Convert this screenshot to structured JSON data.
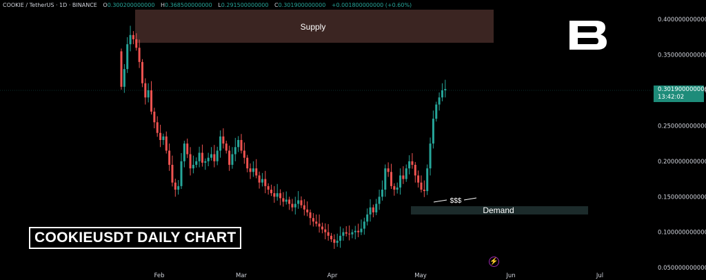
{
  "header": {
    "symbol": "COOKIE / TetherUS · 1D · BINANCE",
    "open_label": "O",
    "open": "0.300200000000",
    "high_label": "H",
    "high": "0.368500000000",
    "low_label": "L",
    "low": "0.291500000000",
    "close_label": "C",
    "close": "0.301900000000",
    "change": "+0.001800000000 (+0.60%)"
  },
  "price_tag": {
    "price": "0.301900000000",
    "countdown": "13:42:02"
  },
  "overlay_title": "COOKIEUSDT DAILY CHART",
  "zones": {
    "supply_label": "Supply",
    "demand_label": "Demand",
    "liquidity_label": "$$$"
  },
  "colors": {
    "up": "#26a69a",
    "down": "#ef5350",
    "supply_zone": "#3b2522",
    "demand_zone": "#1c2b2b"
  },
  "chart_data": {
    "type": "candlestick",
    "y_axis_ticks": [
      "0.400000000000",
      "0.350000000000",
      "0.300000000000",
      "0.250000000000",
      "0.200000000000",
      "0.150000000000",
      "0.100000000000",
      "0.050000000000"
    ],
    "x_axis_ticks": [
      "Feb",
      "Mar",
      "Apr",
      "May",
      "Jun",
      "Jul"
    ],
    "ylim": [
      0.05,
      0.42
    ],
    "grid": false,
    "supply_zone": [
      0.367,
      0.415
    ],
    "demand_zone": [
      0.126,
      0.135
    ],
    "last_price": 0.3019,
    "closes": [
      0.305,
      0.33,
      0.365,
      0.378,
      0.372,
      0.36,
      0.34,
      0.31,
      0.29,
      0.3,
      0.27,
      0.255,
      0.24,
      0.23,
      0.235,
      0.215,
      0.195,
      0.17,
      0.16,
      0.165,
      0.2,
      0.225,
      0.21,
      0.19,
      0.195,
      0.2,
      0.212,
      0.198,
      0.2,
      0.205,
      0.21,
      0.2,
      0.215,
      0.235,
      0.225,
      0.215,
      0.195,
      0.21,
      0.22,
      0.23,
      0.215,
      0.205,
      0.19,
      0.185,
      0.19,
      0.18,
      0.17,
      0.175,
      0.165,
      0.16,
      0.155,
      0.15,
      0.155,
      0.148,
      0.143,
      0.146,
      0.14,
      0.135,
      0.14,
      0.145,
      0.138,
      0.132,
      0.128,
      0.12,
      0.115,
      0.112,
      0.108,
      0.104,
      0.1,
      0.095,
      0.09,
      0.085,
      0.088,
      0.095,
      0.1,
      0.098,
      0.097,
      0.1,
      0.102,
      0.1,
      0.105,
      0.115,
      0.125,
      0.135,
      0.128,
      0.14,
      0.15,
      0.16,
      0.19,
      0.185,
      0.165,
      0.16,
      0.163,
      0.18,
      0.175,
      0.19,
      0.2,
      0.195,
      0.18,
      0.17,
      0.16,
      0.158,
      0.19,
      0.225,
      0.26,
      0.28,
      0.29,
      0.3,
      0.3019
    ]
  }
}
